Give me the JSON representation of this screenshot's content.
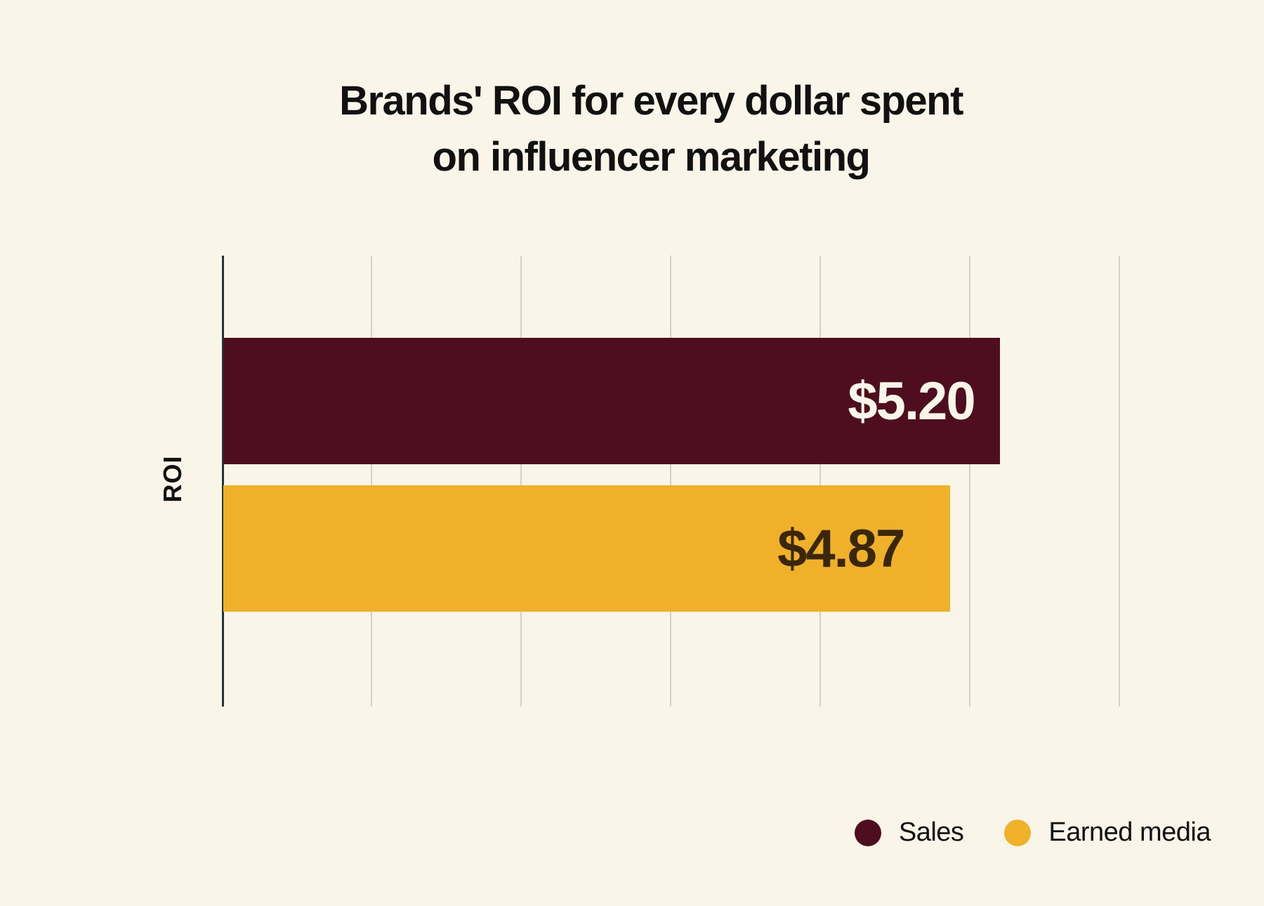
{
  "chart_data": {
    "type": "bar",
    "orientation": "horizontal",
    "title": "Brands' ROI for every dollar spent on influencer marketing",
    "title_lines": [
      "Brands' ROI for every dollar spent",
      "on influencer marketing"
    ],
    "categories": [
      "ROI"
    ],
    "series": [
      {
        "name": "Sales",
        "values": [
          5.2
        ],
        "label": "$5.20",
        "color": "#4e0e1f",
        "label_color": "#f9f6e9"
      },
      {
        "name": "Earned media",
        "values": [
          4.87
        ],
        "label": "$4.87",
        "color": "#f0b02a",
        "label_color": "#3a2708"
      }
    ],
    "xlabel": "",
    "ylabel": "ROI",
    "xlim": [
      0,
      6
    ],
    "grid": true,
    "gridlines_x": [
      1,
      2,
      3,
      4,
      5,
      6
    ],
    "tick_labels_shown": false,
    "legend_position": "bottom-right"
  },
  "colors": {
    "background": "#f9f6e9",
    "axis": "#1f3a35",
    "grid": "#d3d0c4"
  }
}
